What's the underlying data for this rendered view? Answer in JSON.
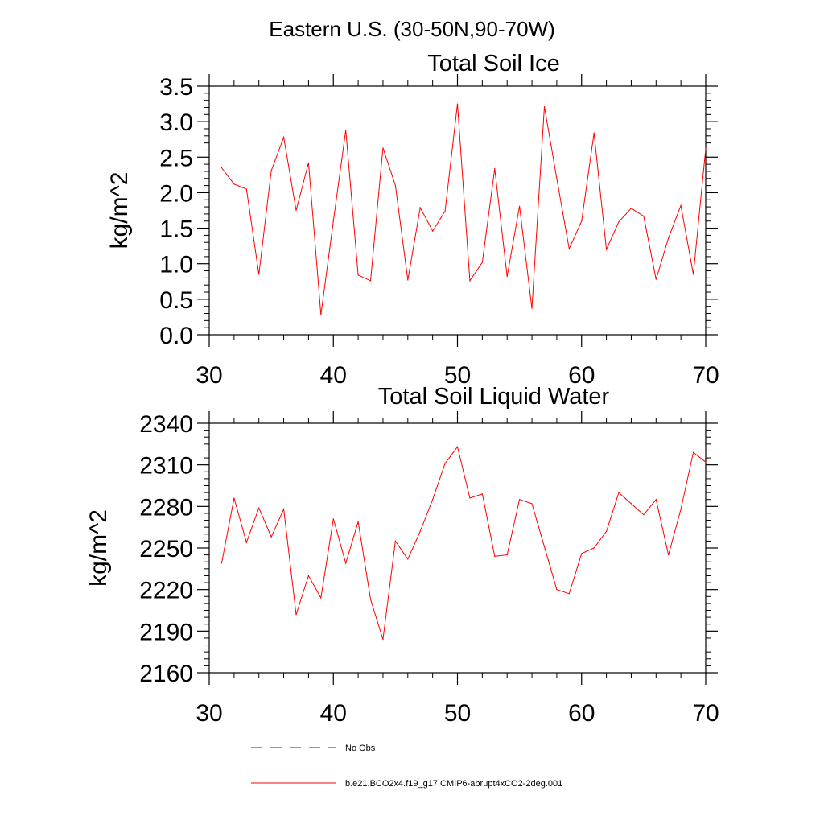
{
  "figure": {
    "suptitle": "Eastern U.S. (30-50N,90-70W)"
  },
  "colors": {
    "series": "#ff0000",
    "axis": "#000000",
    "no_obs": "#1f2a5e",
    "background": "#ffffff"
  },
  "chart_data": [
    {
      "type": "line",
      "title": "Total Soil Ice",
      "xlabel": "",
      "ylabel": "kg/m^2",
      "xlim": [
        30,
        70
      ],
      "ylim": [
        0,
        3.5
      ],
      "x_ticks": [
        30,
        40,
        50,
        60,
        70
      ],
      "x_tick_labels": [
        "30",
        "40",
        "50",
        "60",
        "70"
      ],
      "y_ticks": [
        0,
        0.5,
        1.0,
        1.5,
        2.0,
        2.5,
        3.0,
        3.5
      ],
      "y_tick_labels": [
        "0.0",
        "0.5",
        "1.0",
        "1.5",
        "2.0",
        "2.5",
        "3.0",
        "3.5"
      ],
      "series": [
        {
          "name": "b.e21.BCO2x4.f19_g17.CMIP6-abrupt4xCO2-2deg.001",
          "x": [
            31,
            32,
            33,
            34,
            35,
            36,
            37,
            38,
            39,
            40,
            41,
            42,
            43,
            44,
            45,
            46,
            47,
            48,
            49,
            50,
            51,
            52,
            53,
            54,
            55,
            56,
            57,
            58,
            59,
            60,
            61,
            62,
            63,
            64,
            65,
            66,
            67,
            68,
            69,
            70
          ],
          "values": [
            2.35,
            2.12,
            2.05,
            0.85,
            2.31,
            2.78,
            1.75,
            2.42,
            0.28,
            1.6,
            2.88,
            0.84,
            0.76,
            2.63,
            2.1,
            0.77,
            1.79,
            1.46,
            1.74,
            3.25,
            0.76,
            1.02,
            2.34,
            0.82,
            1.81,
            0.37,
            3.21,
            2.2,
            1.21,
            1.6,
            2.84,
            1.2,
            1.59,
            1.78,
            1.67,
            0.78,
            1.36,
            1.82,
            0.85,
            2.62
          ]
        }
      ]
    },
    {
      "type": "line",
      "title": "Total Soil Liquid Water",
      "xlabel": "",
      "ylabel": "kg/m^2",
      "xlim": [
        30,
        70
      ],
      "ylim": [
        2160,
        2340
      ],
      "x_ticks": [
        30,
        40,
        50,
        60,
        70
      ],
      "x_tick_labels": [
        "30",
        "40",
        "50",
        "60",
        "70"
      ],
      "y_ticks": [
        2160,
        2190,
        2220,
        2250,
        2280,
        2310,
        2340
      ],
      "y_tick_labels": [
        "2160",
        "2190",
        "2220",
        "2250",
        "2280",
        "2310",
        "2340"
      ],
      "series": [
        {
          "name": "b.e21.BCO2x4.f19_g17.CMIP6-abrupt4xCO2-2deg.001",
          "x": [
            31,
            32,
            33,
            34,
            35,
            36,
            37,
            38,
            39,
            40,
            41,
            42,
            43,
            44,
            45,
            46,
            47,
            48,
            49,
            50,
            51,
            52,
            53,
            54,
            55,
            56,
            57,
            58,
            59,
            60,
            61,
            62,
            63,
            64,
            65,
            66,
            67,
            68,
            69,
            70
          ],
          "values": [
            2239,
            2286,
            2254,
            2279,
            2258,
            2278,
            2202,
            2230,
            2214,
            2271,
            2239,
            2269,
            2213,
            2184,
            2255,
            2242,
            2262,
            2285,
            2311,
            2323,
            2286,
            2289,
            2244,
            2245,
            2285,
            2282,
            2251,
            2220,
            2217,
            2246,
            2250,
            2262,
            2290,
            2282,
            2274,
            2285,
            2245,
            2278,
            2319,
            2312
          ]
        }
      ]
    }
  ],
  "legend": [
    {
      "label": "No Obs",
      "style": "dashed"
    },
    {
      "label": "b.e21.BCO2x4.f19_g17.CMIP6-abrupt4xCO2-2deg.001",
      "style": "solid"
    }
  ]
}
